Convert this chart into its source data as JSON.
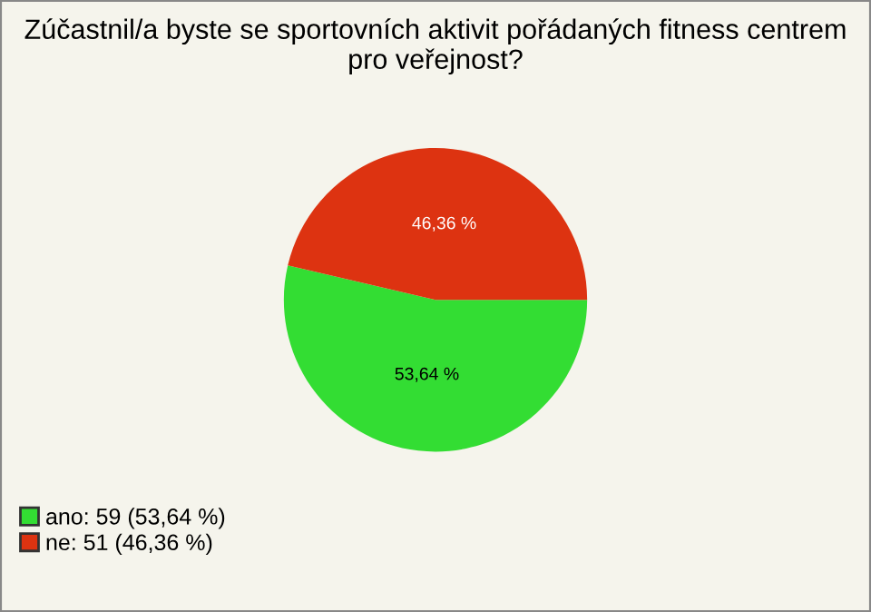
{
  "chart_data": {
    "type": "pie",
    "title": "Zúčastnil/a byste se sportovních aktivit pořádaných fitness centrem pro veřejnost?",
    "categories": [
      "ano: 59 (53,64 %)",
      "ne: 51 (46,36 %)"
    ],
    "values": [
      53.64,
      46.36
    ],
    "value_labels": [
      "53,64 %",
      "46,36 %"
    ],
    "colors": [
      "#33dd33",
      "#dd3311"
    ],
    "legend": "bottom left"
  }
}
